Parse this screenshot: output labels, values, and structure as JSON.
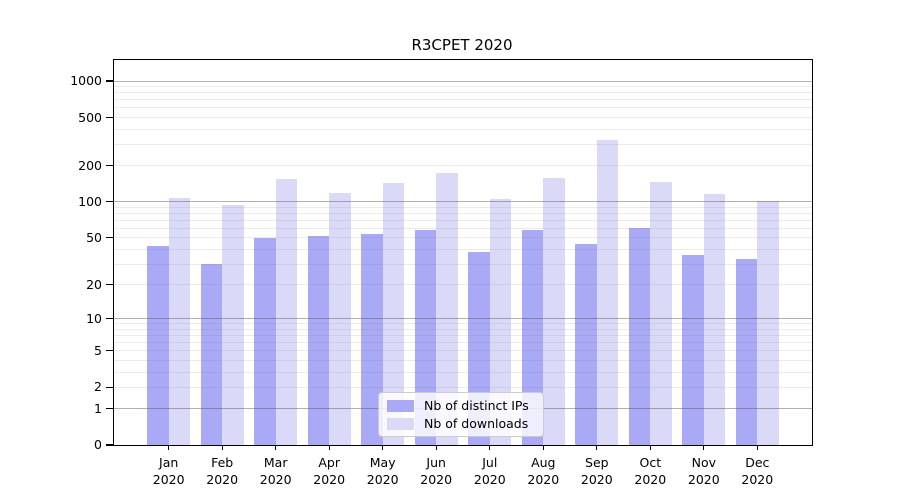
{
  "figure": {
    "title": "R3CPET 2020"
  },
  "chart_data": {
    "type": "bar",
    "title": "R3CPET 2020",
    "xlabel": "",
    "ylabel": "",
    "x_tick_months": [
      "Jan",
      "Feb",
      "Mar",
      "Apr",
      "May",
      "Jun",
      "Jul",
      "Aug",
      "Sep",
      "Oct",
      "Nov",
      "Dec"
    ],
    "x_tick_year": "2020",
    "series": [
      {
        "name": "Nb of distinct IPs",
        "color": "#a9a9f5",
        "values": [
          43,
          30,
          50,
          52,
          54,
          58,
          38,
          58,
          44,
          60,
          36,
          33
        ]
      },
      {
        "name": "Nb of downloads",
        "color": "#dadaf8",
        "values": [
          108,
          94,
          155,
          119,
          143,
          175,
          106,
          157,
          326,
          146,
          117,
          102
        ]
      }
    ],
    "yscale": "log1p",
    "ylim": [
      0,
      1490
    ],
    "yticks": [
      0,
      1,
      2,
      5,
      10,
      20,
      50,
      100,
      200,
      500,
      1000
    ],
    "major_grid_values": [
      1,
      10,
      100,
      1000
    ],
    "minor_grid_values": [
      2,
      3,
      4,
      5,
      6,
      7,
      8,
      9,
      20,
      30,
      40,
      50,
      60,
      70,
      80,
      90,
      200,
      300,
      400,
      500,
      600,
      700,
      800,
      900
    ],
    "grid": true,
    "legend_position": "lower center"
  }
}
